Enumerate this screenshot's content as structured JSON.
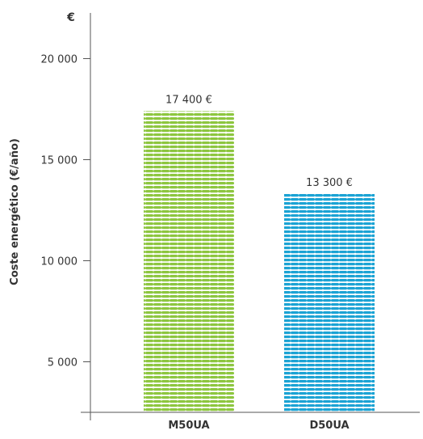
{
  "chart_data": {
    "type": "bar",
    "categories": [
      "M50UA",
      "D50UA"
    ],
    "values": [
      17400,
      13300
    ],
    "value_labels": [
      "17 400 €",
      "13 300 €"
    ],
    "ylabel": "Coste energético  (€/año)",
    "y_unit": "€",
    "yticks": [
      5000,
      10000,
      15000,
      20000
    ],
    "ytick_labels": [
      "5 000",
      "10 000",
      "15 000",
      "20 000"
    ],
    "ylim": [
      2500,
      22500
    ],
    "grid": false,
    "bar_colors": [
      "#8dc63f",
      "#1ba3d4"
    ]
  }
}
